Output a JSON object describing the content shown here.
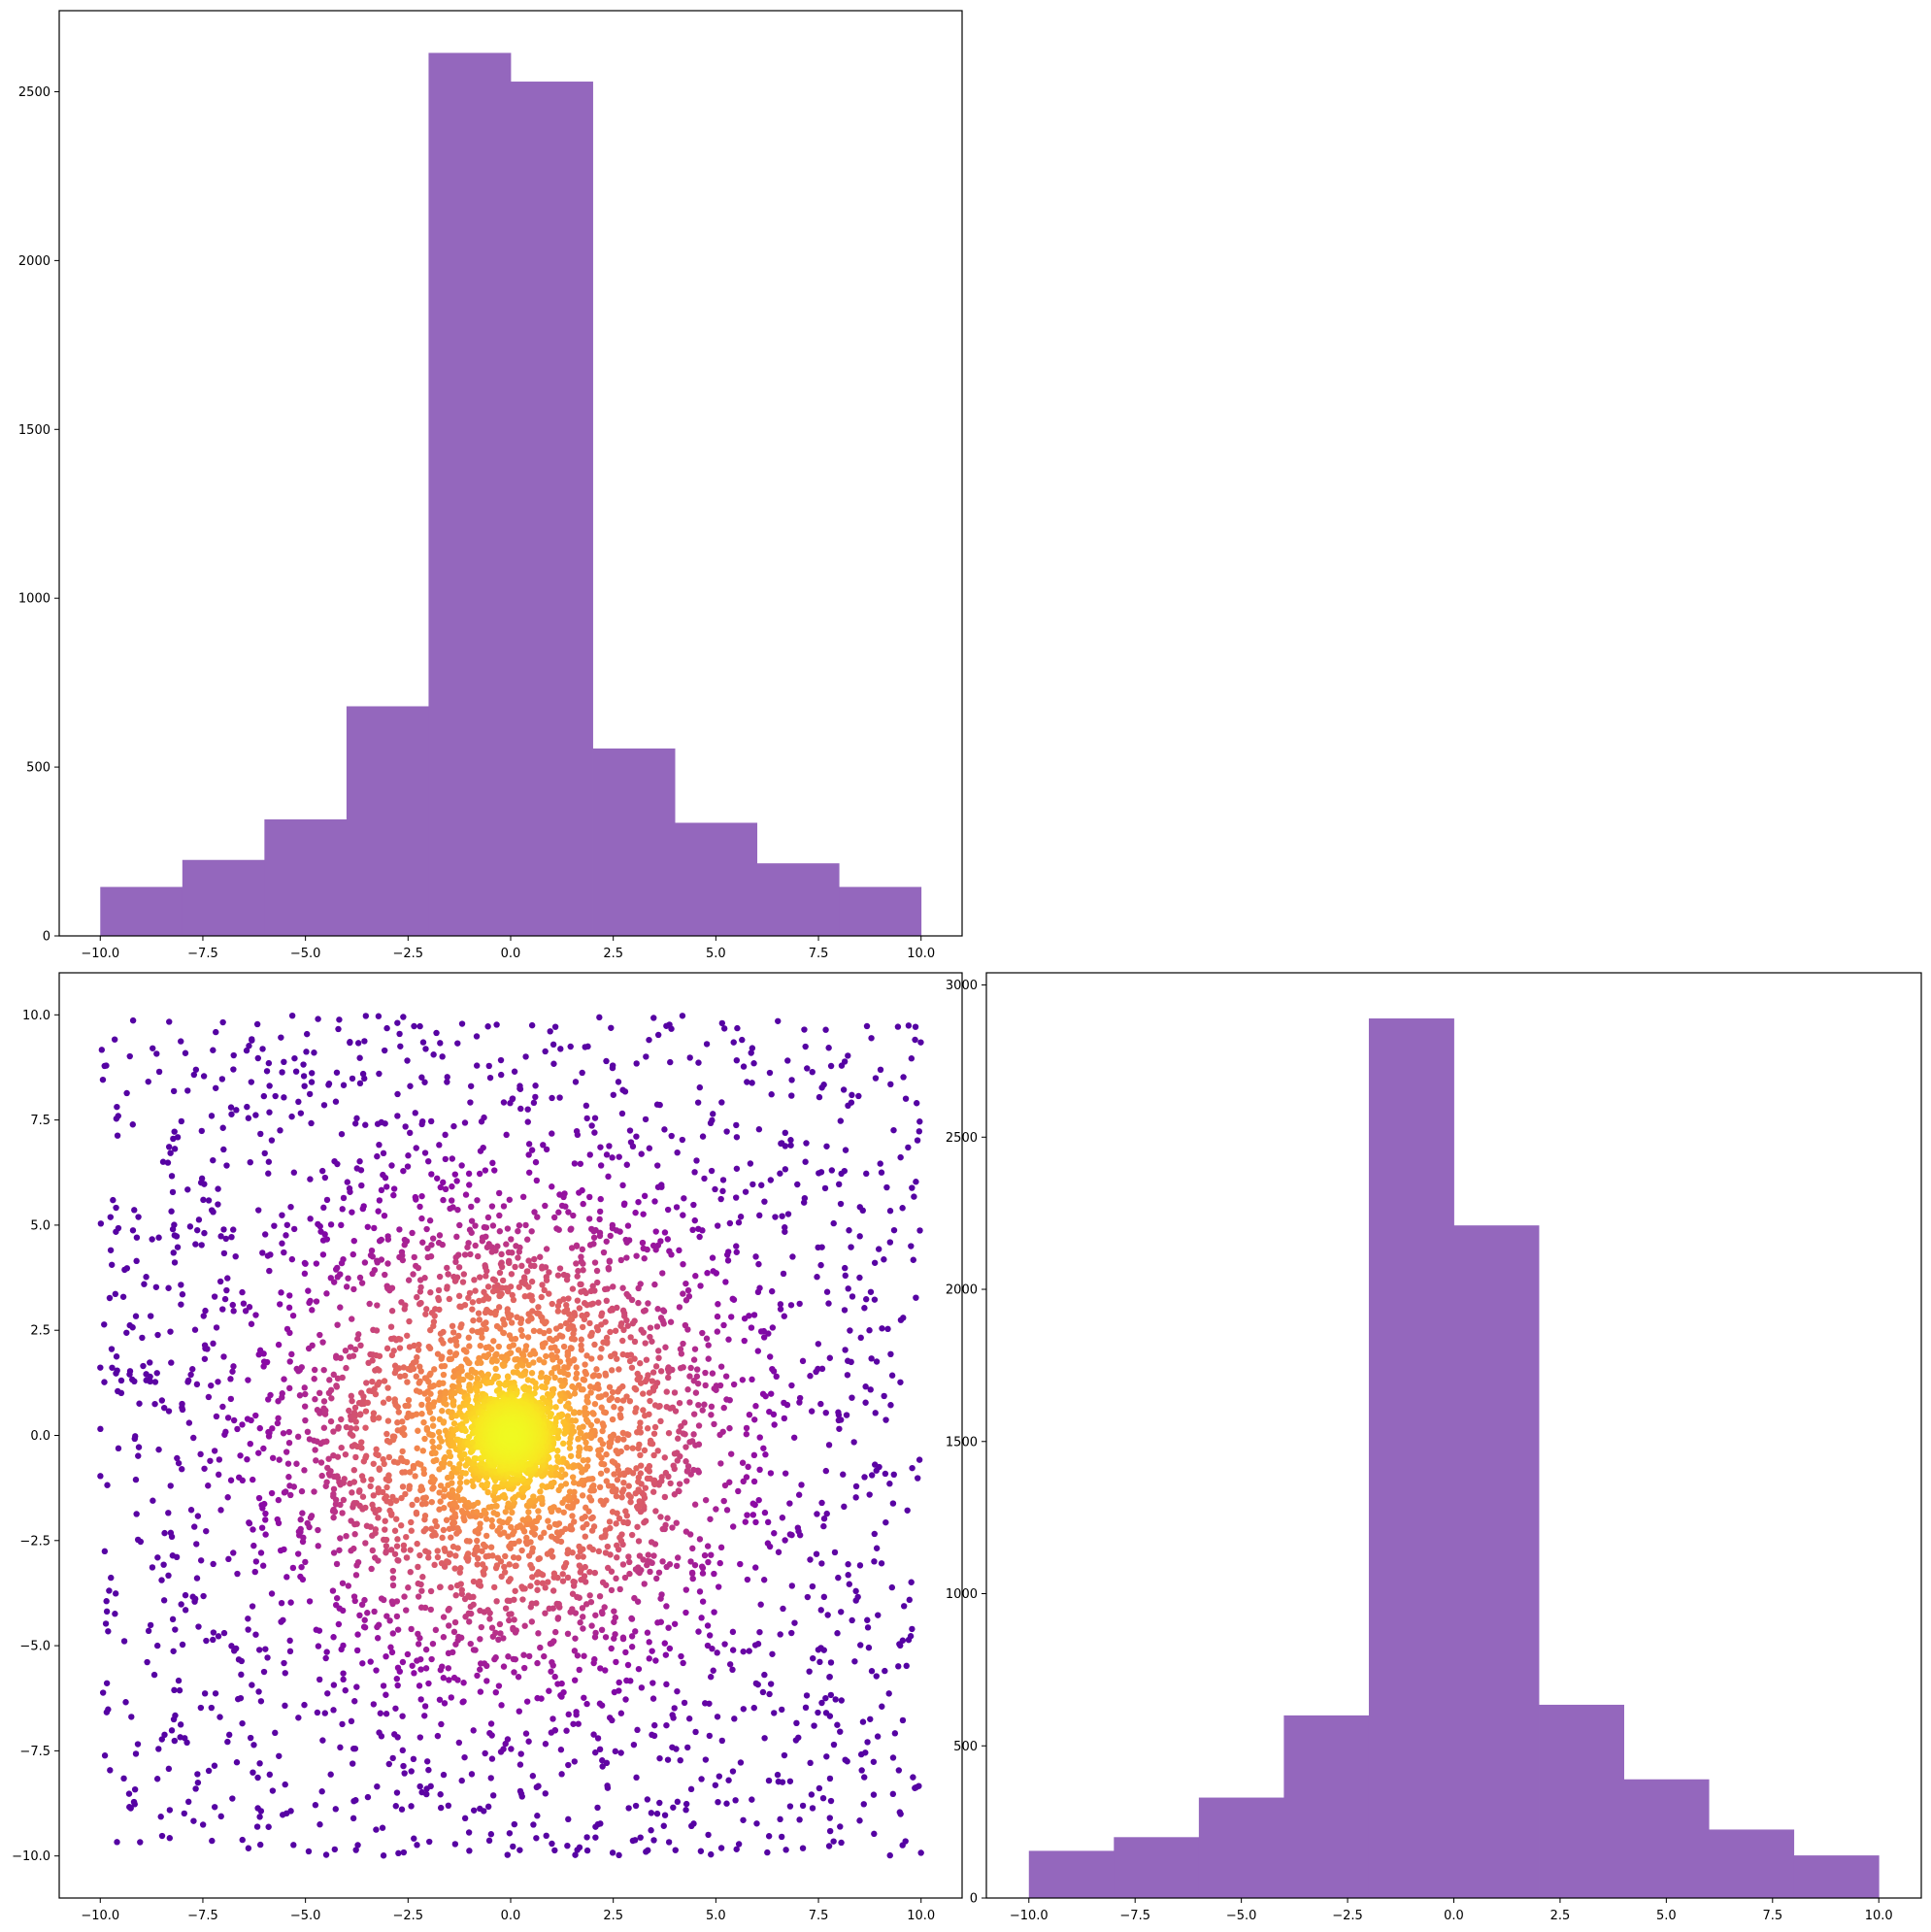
{
  "chart_data": [
    {
      "type": "bar",
      "panel": "top-left",
      "subtype": "histogram",
      "bin_edges": [
        -10,
        -8,
        -6,
        -4,
        -2,
        0,
        2,
        4,
        6,
        8,
        10
      ],
      "values": [
        145,
        225,
        345,
        680,
        2615,
        2530,
        555,
        335,
        215,
        145
      ],
      "xlim": [
        -11,
        11
      ],
      "ylim": [
        0,
        2740
      ],
      "xticks": [
        -10.0,
        -7.5,
        -5.0,
        -2.5,
        0.0,
        2.5,
        5.0,
        7.5,
        10.0
      ],
      "yticks": [
        0,
        500,
        1000,
        1500,
        2000,
        2500
      ],
      "xtick_labels": [
        "−10.0",
        "−7.5",
        "−5.0",
        "−2.5",
        "0.0",
        "2.5",
        "5.0",
        "7.5",
        "10.0"
      ],
      "ytick_labels": [
        "0",
        "500",
        "1000",
        "1500",
        "2000",
        "2500"
      ],
      "bar_color": "#9467bd",
      "grid": false
    },
    {
      "type": "scatter",
      "panel": "bottom-left",
      "colormap": "plasma",
      "color_by": "density",
      "point_count": 6000,
      "distribution": "concentrated near (0, 0), uniform tails spanning -10 to 10 on both axes",
      "xlim": [
        -11,
        11
      ],
      "ylim": [
        -11,
        11
      ],
      "xticks": [
        -10.0,
        -7.5,
        -5.0,
        -2.5,
        0.0,
        2.5,
        5.0,
        7.5,
        10.0
      ],
      "yticks": [
        -10.0,
        -7.5,
        -5.0,
        -2.5,
        0.0,
        2.5,
        5.0,
        7.5,
        10.0
      ],
      "xtick_labels": [
        "−10.0",
        "−7.5",
        "−5.0",
        "−2.5",
        "0.0",
        "2.5",
        "5.0",
        "7.5",
        "10.0"
      ],
      "ytick_labels": [
        "−10.0",
        "−7.5",
        "−5.0",
        "−2.5",
        "0.0",
        "2.5",
        "5.0",
        "7.5",
        "10.0"
      ],
      "grid": false
    },
    {
      "type": "bar",
      "panel": "bottom-right",
      "subtype": "histogram",
      "bin_edges": [
        -10,
        -8,
        -6,
        -4,
        -2,
        0,
        2,
        4,
        6,
        8,
        10
      ],
      "values": [
        155,
        200,
        330,
        600,
        2890,
        2210,
        635,
        390,
        225,
        140
      ],
      "xlim": [
        -11,
        11
      ],
      "ylim": [
        0,
        3040
      ],
      "xticks": [
        -10.0,
        -7.5,
        -5.0,
        -2.5,
        0.0,
        2.5,
        5.0,
        7.5,
        10.0
      ],
      "yticks": [
        0,
        500,
        1000,
        1500,
        2000,
        2500,
        3000
      ],
      "xtick_labels": [
        "−10.0",
        "−7.5",
        "−5.0",
        "−2.5",
        "0.0",
        "2.5",
        "5.0",
        "7.5",
        "10.0"
      ],
      "ytick_labels": [
        "0",
        "500",
        "1000",
        "1500",
        "2000",
        "2500",
        "3000"
      ],
      "bar_color": "#9467bd",
      "grid": false
    }
  ]
}
